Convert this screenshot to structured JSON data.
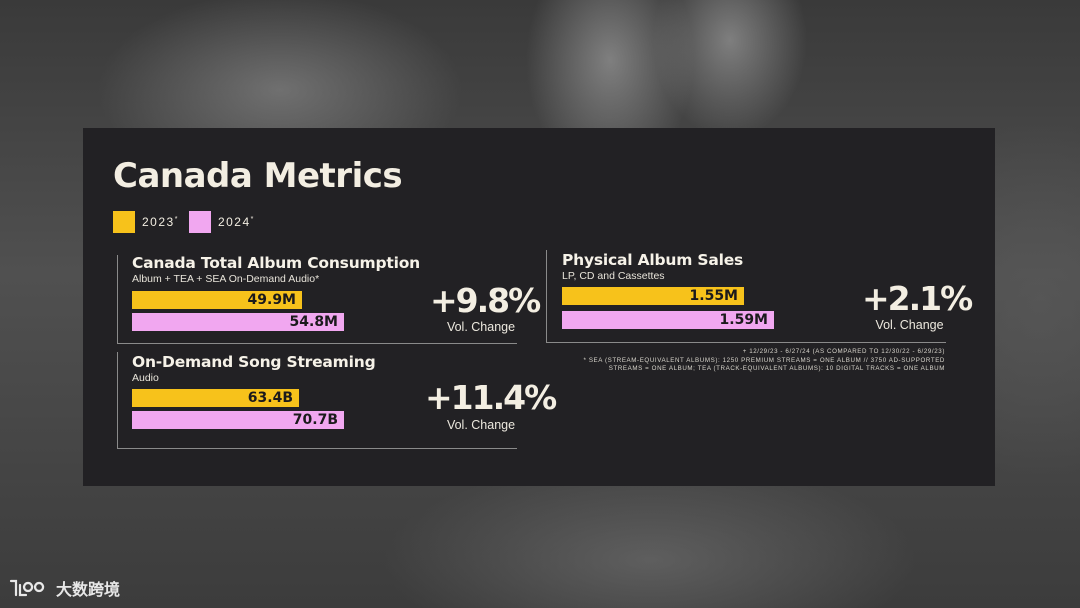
{
  "page": {
    "title": "Canada Metrics"
  },
  "legend": [
    {
      "label": "2023",
      "mark": "*",
      "color": "#f7c21b"
    },
    {
      "label": "2024",
      "mark": "*",
      "color": "#f1a7f0"
    }
  ],
  "chart_data": [
    {
      "type": "bar",
      "title": "Canada Total Album Consumption",
      "subtitle": "Album + TEA + SEA On-Demand Audio*",
      "series": [
        {
          "name": "2023",
          "values": [
            49.9
          ],
          "label": "49.9M"
        },
        {
          "name": "2024",
          "values": [
            54.8
          ],
          "label": "54.8M"
        }
      ],
      "change": "+9.8%",
      "change_label": "Vol. Change"
    },
    {
      "type": "bar",
      "title": "On-Demand Song Streaming",
      "subtitle": "Audio",
      "series": [
        {
          "name": "2023",
          "values": [
            63.4
          ],
          "label": "63.4B"
        },
        {
          "name": "2024",
          "values": [
            70.7
          ],
          "label": "70.7B"
        }
      ],
      "change": "+11.4%",
      "change_label": "Vol. Change"
    },
    {
      "type": "bar",
      "title": "Physical Album Sales",
      "subtitle": "LP, CD and Cassettes",
      "series": [
        {
          "name": "2023",
          "values": [
            1.55
          ],
          "label": "1.55M"
        },
        {
          "name": "2024",
          "values": [
            1.59
          ],
          "label": "1.59M"
        }
      ],
      "change": "+2.1%",
      "change_label": "Vol. Change"
    }
  ],
  "footnote": {
    "line1": "+ 12/29/23 - 6/27/24 (as compared to 12/30/22 - 6/29/23)",
    "line2": "* SEA (Stream-Equivalent Albums): 1250 Premium Streams = One Album // 3750 Ad-Supported",
    "line3": "Streams = One Album; TEA (Track-Equivalent Albums): 10 Digital Tracks = One Album"
  },
  "watermark": {
    "text": "大数跨境",
    "icon": "brand-logo-icon"
  }
}
